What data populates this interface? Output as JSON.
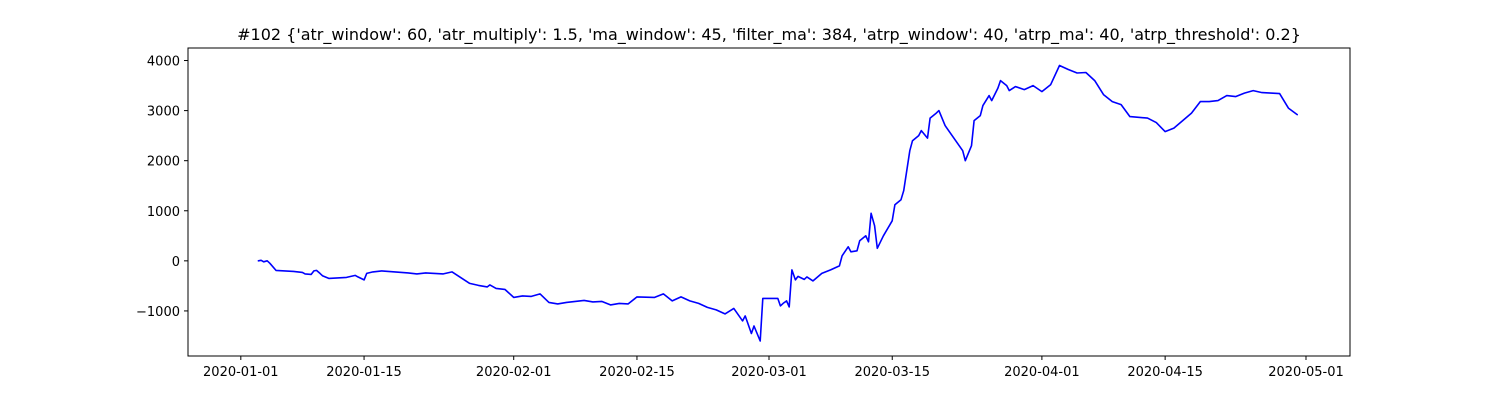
{
  "chart_data": {
    "type": "line",
    "title": "#102 {'atr_window': 60, 'atr_multiply': 1.5, 'ma_window': 45, 'filter_ma': 384, 'atrp_window': 40, 'atrp_ma': 40, 'atrp_threshold': 0.2}",
    "xlabel": "",
    "ylabel": "",
    "grid": false,
    "legend": "none",
    "color": "#0000ff",
    "xlim": [
      "2019-12-26",
      "2020-05-06"
    ],
    "ylim": [
      -1900,
      4250
    ],
    "x_ticks": [
      "2020-01-01",
      "2020-01-15",
      "2020-02-01",
      "2020-02-15",
      "2020-03-01",
      "2020-03-15",
      "2020-04-01",
      "2020-04-15",
      "2020-05-01"
    ],
    "y_ticks": [
      -1000,
      0,
      1000,
      2000,
      3000,
      4000
    ],
    "series": [
      {
        "x": [
          "2020-01-03",
          "2020-01-03",
          "2020-01-03",
          "2020-01-04",
          "2020-01-04",
          "2020-01-05",
          "2020-01-07",
          "2020-01-08",
          "2020-01-08",
          "2020-01-09",
          "2020-01-09",
          "2020-01-09",
          "2020-01-10",
          "2020-01-10",
          "2020-01-11",
          "2020-01-13",
          "2020-01-14",
          "2020-01-14",
          "2020-01-15",
          "2020-01-15",
          "2020-01-16",
          "2020-01-17",
          "2020-01-20",
          "2020-01-21",
          "2020-01-22",
          "2020-01-23",
          "2020-01-24",
          "2020-01-25",
          "2020-01-27",
          "2020-01-28",
          "2020-01-29",
          "2020-01-29",
          "2020-01-30",
          "2020-01-31",
          "2020-02-01",
          "2020-02-02",
          "2020-02-03",
          "2020-02-04",
          "2020-02-05",
          "2020-02-06",
          "2020-02-07",
          "2020-02-09",
          "2020-02-10",
          "2020-02-11",
          "2020-02-12",
          "2020-02-13",
          "2020-02-14",
          "2020-02-15",
          "2020-02-17",
          "2020-02-18",
          "2020-02-19",
          "2020-02-20",
          "2020-02-21",
          "2020-02-22",
          "2020-02-23",
          "2020-02-24",
          "2020-02-25",
          "2020-02-26",
          "2020-02-27",
          "2020-02-27",
          "2020-02-28",
          "2020-02-28",
          "2020-02-29",
          "2020-02-29",
          "2020-03-02",
          "2020-03-02",
          "2020-03-02",
          "2020-03-03",
          "2020-03-03",
          "2020-03-03",
          "2020-03-04",
          "2020-03-04",
          "2020-03-05",
          "2020-03-05",
          "2020-03-06",
          "2020-03-07",
          "2020-03-08",
          "2020-03-09",
          "2020-03-09",
          "2020-03-10",
          "2020-03-10",
          "2020-03-11",
          "2020-03-11",
          "2020-03-12",
          "2020-03-12",
          "2020-03-12",
          "2020-03-13",
          "2020-03-13",
          "2020-03-14",
          "2020-03-15",
          "2020-03-15",
          "2020-03-16",
          "2020-03-16",
          "2020-03-17",
          "2020-03-17",
          "2020-03-18",
          "2020-03-18",
          "2020-03-19",
          "2020-03-19",
          "2020-03-20",
          "2020-03-20",
          "2020-03-21",
          "2020-03-23",
          "2020-03-23",
          "2020-03-24",
          "2020-03-24",
          "2020-03-25",
          "2020-03-25",
          "2020-03-26",
          "2020-03-26",
          "2020-03-27",
          "2020-03-27",
          "2020-03-28",
          "2020-03-28",
          "2020-03-29",
          "2020-03-30",
          "2020-03-31",
          "2020-04-01",
          "2020-04-02",
          "2020-04-03",
          "2020-04-04",
          "2020-04-05",
          "2020-04-06",
          "2020-04-07",
          "2020-04-08",
          "2020-04-09",
          "2020-04-10",
          "2020-04-11",
          "2020-04-13",
          "2020-04-14",
          "2020-04-15",
          "2020-04-16",
          "2020-04-17",
          "2020-04-18",
          "2020-04-19",
          "2020-04-20",
          "2020-04-21",
          "2020-04-22",
          "2020-04-23",
          "2020-04-24",
          "2020-04-25",
          "2020-04-26",
          "2020-04-27",
          "2020-04-28",
          "2020-04-29",
          "2020-04-30"
        ],
        "y": [
          0,
          10,
          -20,
          0,
          -50,
          -190,
          -210,
          -230,
          -260,
          -270,
          -200,
          -190,
          -250,
          -300,
          -350,
          -330,
          -290,
          -320,
          -380,
          -250,
          -220,
          -200,
          -240,
          -260,
          -240,
          -250,
          -260,
          -220,
          -450,
          -490,
          -520,
          -480,
          -550,
          -570,
          -730,
          -700,
          -710,
          -660,
          -830,
          -860,
          -830,
          -790,
          -820,
          -810,
          -880,
          -850,
          -860,
          -720,
          -730,
          -660,
          -800,
          -720,
          -800,
          -850,
          -930,
          -980,
          -1060,
          -950,
          -1200,
          -1100,
          -1450,
          -1300,
          -1600,
          -750,
          -750,
          -900,
          -850,
          -800,
          -920,
          -180,
          -380,
          -310,
          -370,
          -320,
          -400,
          -250,
          -180,
          -100,
          100,
          280,
          180,
          200,
          400,
          500,
          380,
          950,
          700,
          250,
          500,
          800,
          1120,
          1220,
          1400,
          2200,
          2400,
          2500,
          2600,
          2450,
          2850,
          2950,
          3000,
          2700,
          2200,
          2000,
          2300,
          2800,
          2900,
          3100,
          3300,
          3200,
          3450,
          3600,
          3500,
          3400,
          3480,
          3420,
          3500,
          3380,
          3520,
          3900,
          3820,
          3750,
          3760,
          3600,
          3320,
          3180,
          3120,
          2880,
          2850,
          2760,
          2580,
          2650,
          2800,
          2950,
          3180,
          3180,
          3200,
          3300,
          3280,
          3350,
          3400,
          3360,
          3350,
          3340,
          3050,
          2920
        ]
      }
    ]
  }
}
